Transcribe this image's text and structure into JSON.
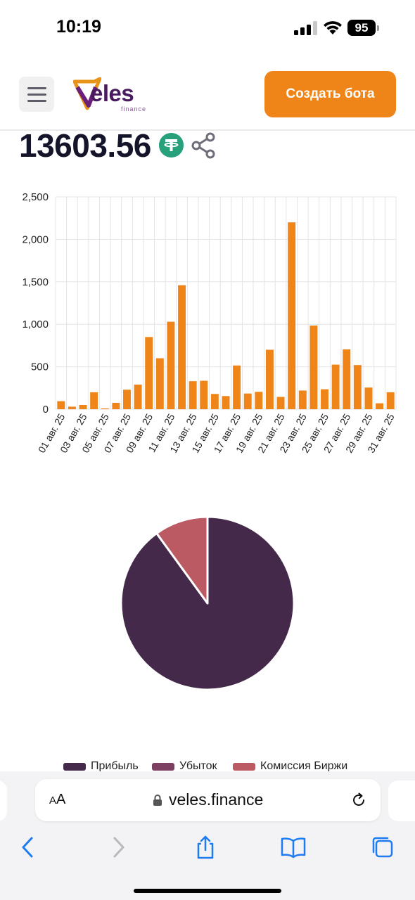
{
  "status_bar": {
    "time": "10:19",
    "battery": "95"
  },
  "header": {
    "logo_text": "eles",
    "logo_sub": "finance",
    "create_bot_label": "Создать бота",
    "brand_color": "#ef8518"
  },
  "balance": {
    "value": "13603.56",
    "currency_icon": "tether-icon",
    "share_icon": "share-icon"
  },
  "chart_data": [
    {
      "type": "bar",
      "categories": [
        "01 авг. 25",
        "02 авг. 25",
        "03 авг. 25",
        "04 авг. 25",
        "05 авг. 25",
        "06 авг. 25",
        "07 авг. 25",
        "08 авг. 25",
        "09 авг. 25",
        "10 авг. 25",
        "11 авг. 25",
        "12 авг. 25",
        "13 авг. 25",
        "14 авг. 25",
        "15 авг. 25",
        "16 авг. 25",
        "17 авг. 25",
        "18 авг. 25",
        "19 авг. 25",
        "20 авг. 25",
        "21 авг. 25",
        "22 авг. 25",
        "23 авг. 25",
        "24 авг. 25",
        "25 авг. 25",
        "26 авг. 25",
        "27 авг. 25",
        "28 авг. 25",
        "29 авг. 25",
        "30 авг. 25",
        "31 авг. 25"
      ],
      "tick_labels": [
        "01 авг. 25",
        "03 авг. 25",
        "05 авг. 25",
        "07 авг. 25",
        "09 авг. 25",
        "11 авг. 25",
        "13 авг. 25",
        "15 авг. 25",
        "17 авг. 25",
        "19 авг. 25",
        "21 авг. 25",
        "23 авг. 25",
        "25 авг. 25",
        "27 авг. 25",
        "29 авг. 25",
        "31 авг. 25"
      ],
      "values": [
        95,
        30,
        50,
        200,
        10,
        75,
        230,
        290,
        850,
        600,
        1030,
        1460,
        330,
        335,
        180,
        155,
        515,
        185,
        205,
        700,
        145,
        2200,
        220,
        985,
        235,
        525,
        705,
        520,
        255,
        70,
        200
      ],
      "y_ticks": [
        "2,500",
        "2,000",
        "1,500",
        "1,000",
        "500",
        "0"
      ],
      "ylim": [
        0,
        2500
      ],
      "grid": true,
      "bar_color": "#ef8518"
    },
    {
      "type": "pie",
      "labels": [
        "Прибыль",
        "Убыток",
        "Комиссия Биржи"
      ],
      "values": [
        90,
        0,
        10
      ],
      "colors": [
        "#45294a",
        "#7d3f62",
        "#bc5a63"
      ],
      "legend_position": "bottom"
    }
  ],
  "legend": [
    {
      "label": "Прибыль",
      "color": "#45294a"
    },
    {
      "label": "Убыток",
      "color": "#7d3f62"
    },
    {
      "label": "Комиссия Биржи",
      "color": "#bc5a63"
    }
  ],
  "browser": {
    "text_size_label_small": "A",
    "text_size_label_large": "A",
    "url": "veles.finance"
  }
}
